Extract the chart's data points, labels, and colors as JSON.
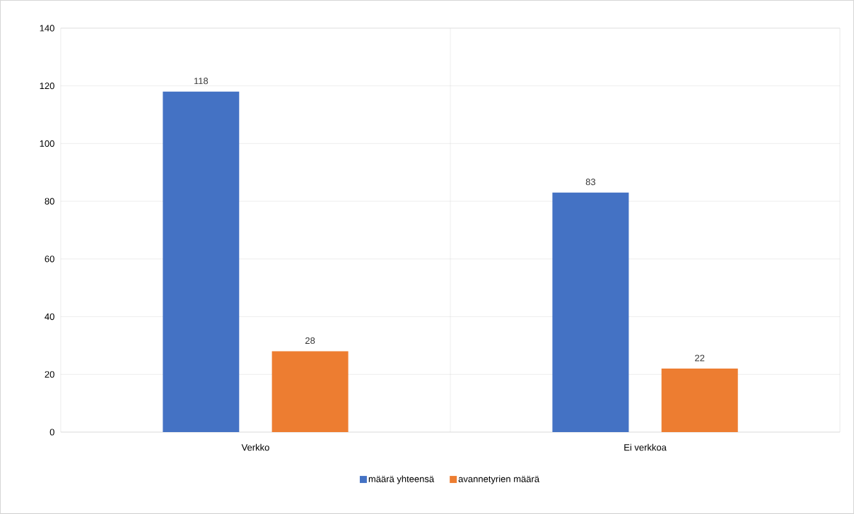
{
  "chart_data": {
    "type": "bar",
    "categories": [
      "Verkko",
      "Ei verkkoa"
    ],
    "series": [
      {
        "name": "määrä yhteensä",
        "color": "#4472c4",
        "values": [
          118,
          83
        ]
      },
      {
        "name": "avannetyrien määrä",
        "color": "#ed7d31",
        "values": [
          28,
          22
        ]
      }
    ],
    "ylim": [
      0,
      140
    ],
    "yticks": [
      0,
      20,
      40,
      60,
      80,
      100,
      120,
      140
    ],
    "grid": true,
    "legend": "bottom",
    "data_labels": true
  }
}
